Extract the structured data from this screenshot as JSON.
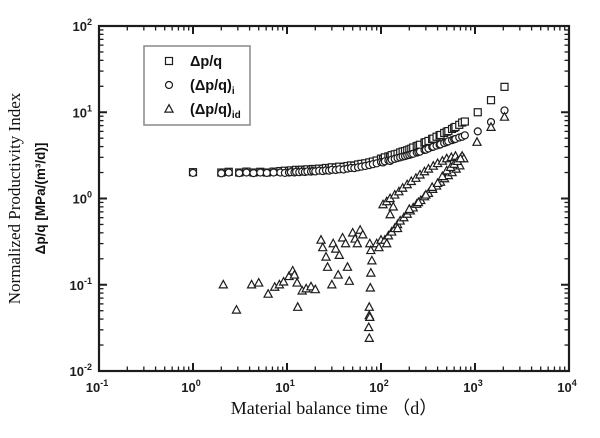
{
  "colors": {
    "background": "#ffffff",
    "frame": "#1c1c1c",
    "marker": "#1c1c1c",
    "marker_fill": "#ffffff",
    "legend_border": "#888888",
    "text": "#111111"
  },
  "chart_data": {
    "type": "scatter",
    "title": "",
    "xlabel": "Material balance time （d）",
    "ylabel_line1": "Normalized Productivity Index",
    "ylabel_line2": "Δp/q [MPa/(m³/d)]",
    "x_scale": "log",
    "y_scale": "log",
    "xlim": [
      0.1,
      10000
    ],
    "ylim": [
      0.01,
      100
    ],
    "x_tick_exponents": [
      -1,
      0,
      1,
      2,
      3,
      4
    ],
    "y_tick_exponents": [
      2,
      1,
      0,
      -1,
      -2
    ],
    "grid": false,
    "legend": {
      "position": "upper-left",
      "entries": [
        {
          "marker": "square",
          "label_main": "Δp/q",
          "label_sub": ""
        },
        {
          "marker": "circle",
          "label_main": "(Δp/q)",
          "label_sub": "i"
        },
        {
          "marker": "triangle",
          "label_main": "(Δp/q)",
          "label_sub": "id"
        }
      ]
    },
    "series": [
      {
        "name": "Δp/q",
        "marker": "square",
        "points": [
          [
            1,
            2.02
          ],
          [
            2,
            2.0
          ],
          [
            2.4,
            2.04
          ],
          [
            3.1,
            2.0
          ],
          [
            3.7,
            2.05
          ],
          [
            4.4,
            2.0
          ],
          [
            5.2,
            2.04
          ],
          [
            6.1,
            2.0
          ],
          [
            7.2,
            2.05
          ],
          [
            8.5,
            2.08
          ],
          [
            9.5,
            2.1
          ],
          [
            10.5,
            2.08
          ],
          [
            11,
            2.12
          ],
          [
            12,
            2.1
          ],
          [
            12.5,
            2.15
          ],
          [
            13.5,
            2.12
          ],
          [
            14.5,
            2.16
          ],
          [
            15.5,
            2.14
          ],
          [
            16.5,
            2.18
          ],
          [
            18,
            2.16
          ],
          [
            19,
            2.2
          ],
          [
            20,
            2.18
          ],
          [
            22,
            2.22
          ],
          [
            24,
            2.2
          ],
          [
            26,
            2.26
          ],
          [
            28,
            2.24
          ],
          [
            30,
            2.3
          ],
          [
            33,
            2.28
          ],
          [
            36,
            2.34
          ],
          [
            40,
            2.32
          ],
          [
            44,
            2.38
          ],
          [
            48,
            2.42
          ],
          [
            52,
            2.4
          ],
          [
            57,
            2.48
          ],
          [
            62,
            2.52
          ],
          [
            68,
            2.56
          ],
          [
            75,
            2.62
          ],
          [
            82,
            2.68
          ],
          [
            90,
            2.76
          ],
          [
            100,
            2.9
          ],
          [
            105,
            2.85
          ],
          [
            110,
            3.0
          ],
          [
            120,
            3.08
          ],
          [
            125,
            3.02
          ],
          [
            130,
            3.18
          ],
          [
            140,
            3.25
          ],
          [
            150,
            3.3
          ],
          [
            160,
            3.42
          ],
          [
            170,
            3.5
          ],
          [
            180,
            3.55
          ],
          [
            190,
            3.62
          ],
          [
            200,
            3.7
          ],
          [
            210,
            3.78
          ],
          [
            220,
            3.9
          ],
          [
            240,
            4.05
          ],
          [
            250,
            4.1
          ],
          [
            260,
            4.2
          ],
          [
            290,
            4.45
          ],
          [
            300,
            4.5
          ],
          [
            320,
            4.65
          ],
          [
            350,
            4.9
          ],
          [
            360,
            4.95
          ],
          [
            390,
            5.2
          ],
          [
            420,
            5.4
          ],
          [
            430,
            5.45
          ],
          [
            470,
            5.75
          ],
          [
            500,
            5.95
          ],
          [
            520,
            6.05
          ],
          [
            570,
            6.4
          ],
          [
            600,
            6.6
          ],
          [
            620,
            6.75
          ],
          [
            680,
            7.15
          ],
          [
            730,
            7.6
          ],
          [
            780,
            7.8
          ],
          [
            1070,
            10.0
          ],
          [
            1480,
            13.8
          ],
          [
            2060,
            19.7
          ]
        ]
      },
      {
        "name": "(Δp/q)i",
        "marker": "circle",
        "points": [
          [
            1,
            1.98
          ],
          [
            2,
            1.96
          ],
          [
            2.4,
            2.0
          ],
          [
            3.1,
            1.97
          ],
          [
            3.7,
            2.0
          ],
          [
            4.4,
            1.97
          ],
          [
            5.2,
            2.0
          ],
          [
            6.1,
            1.98
          ],
          [
            7.2,
            2.0
          ],
          [
            8.5,
            2.0
          ],
          [
            9.5,
            1.98
          ],
          [
            10.5,
            2.0
          ],
          [
            11,
            2.02
          ],
          [
            12,
            2.0
          ],
          [
            12.5,
            2.04
          ],
          [
            13.5,
            2.02
          ],
          [
            14.5,
            2.05
          ],
          [
            15.5,
            2.03
          ],
          [
            16.5,
            2.06
          ],
          [
            18,
            2.05
          ],
          [
            19,
            2.08
          ],
          [
            20,
            2.06
          ],
          [
            22,
            2.1
          ],
          [
            24,
            2.08
          ],
          [
            26,
            2.12
          ],
          [
            28,
            2.1
          ],
          [
            30,
            2.15
          ],
          [
            33,
            2.14
          ],
          [
            36,
            2.18
          ],
          [
            40,
            2.17
          ],
          [
            44,
            2.22
          ],
          [
            48,
            2.26
          ],
          [
            52,
            2.25
          ],
          [
            57,
            2.3
          ],
          [
            62,
            2.34
          ],
          [
            68,
            2.38
          ],
          [
            75,
            2.44
          ],
          [
            82,
            2.5
          ],
          [
            90,
            2.56
          ],
          [
            100,
            2.65
          ],
          [
            105,
            2.62
          ],
          [
            110,
            2.7
          ],
          [
            120,
            2.76
          ],
          [
            125,
            2.72
          ],
          [
            130,
            2.82
          ],
          [
            140,
            2.88
          ],
          [
            150,
            2.95
          ],
          [
            160,
            3.0
          ],
          [
            170,
            3.06
          ],
          [
            180,
            3.1
          ],
          [
            190,
            3.16
          ],
          [
            200,
            3.2
          ],
          [
            210,
            3.26
          ],
          [
            220,
            3.3
          ],
          [
            240,
            3.4
          ],
          [
            250,
            3.45
          ],
          [
            260,
            3.5
          ],
          [
            290,
            3.65
          ],
          [
            300,
            3.68
          ],
          [
            320,
            3.8
          ],
          [
            350,
            3.95
          ],
          [
            360,
            3.98
          ],
          [
            390,
            4.1
          ],
          [
            420,
            4.2
          ],
          [
            430,
            4.25
          ],
          [
            470,
            4.4
          ],
          [
            500,
            4.5
          ],
          [
            520,
            4.6
          ],
          [
            570,
            4.75
          ],
          [
            600,
            4.85
          ],
          [
            620,
            4.9
          ],
          [
            680,
            5.1
          ],
          [
            730,
            5.2
          ],
          [
            780,
            5.4
          ],
          [
            1070,
            6.0
          ],
          [
            1480,
            7.7
          ],
          [
            2060,
            10.5
          ]
        ]
      },
      {
        "name": "(Δp/q)id",
        "marker": "triangle",
        "points": [
          [
            2.1,
            0.1
          ],
          [
            2.9,
            0.051
          ],
          [
            4.2,
            0.1
          ],
          [
            5,
            0.105
          ],
          [
            6.3,
            0.078
          ],
          [
            7.4,
            0.094
          ],
          [
            8.3,
            0.1
          ],
          [
            9.2,
            0.108
          ],
          [
            10.5,
            0.125
          ],
          [
            11.5,
            0.145
          ],
          [
            12,
            0.13
          ],
          [
            12.8,
            0.105
          ],
          [
            13,
            0.055
          ],
          [
            14.5,
            0.085
          ],
          [
            16,
            0.09
          ],
          [
            18,
            0.095
          ],
          [
            20,
            0.088
          ],
          [
            23,
            0.33
          ],
          [
            24,
            0.27
          ],
          [
            26,
            0.21
          ],
          [
            27,
            0.16
          ],
          [
            30,
            0.1
          ],
          [
            31,
            0.3
          ],
          [
            33,
            0.26
          ],
          [
            35,
            0.13
          ],
          [
            36,
            0.22
          ],
          [
            39,
            0.35
          ],
          [
            42,
            0.3
          ],
          [
            44,
            0.16
          ],
          [
            46,
            0.11
          ],
          [
            50,
            0.4
          ],
          [
            53,
            0.34
          ],
          [
            56,
            0.3
          ],
          [
            60,
            0.43
          ],
          [
            64,
            0.38
          ],
          [
            76,
            0.3
          ],
          [
            78,
            0.25
          ],
          [
            80,
            0.19
          ],
          [
            78,
            0.137
          ],
          [
            77,
            0.092
          ],
          [
            75,
            0.055
          ],
          [
            75,
            0.044
          ],
          [
            76,
            0.042
          ],
          [
            74,
            0.032
          ],
          [
            75,
            0.024
          ],
          [
            90,
            0.3
          ],
          [
            95,
            0.27
          ],
          [
            100,
            0.33
          ],
          [
            110,
            0.33
          ],
          [
            115,
            0.3
          ],
          [
            120,
            0.37
          ],
          [
            130,
            0.41
          ],
          [
            140,
            0.45
          ],
          [
            150,
            0.5
          ],
          [
            160,
            0.55
          ],
          [
            175,
            0.6
          ],
          [
            190,
            0.66
          ],
          [
            205,
            0.72
          ],
          [
            220,
            0.78
          ],
          [
            240,
            0.86
          ],
          [
            265,
            0.95
          ],
          [
            290,
            1.05
          ],
          [
            320,
            1.15
          ],
          [
            355,
            1.28
          ],
          [
            390,
            1.4
          ],
          [
            430,
            1.55
          ],
          [
            475,
            1.7
          ],
          [
            520,
            1.85
          ],
          [
            570,
            2.0
          ],
          [
            630,
            2.2
          ],
          [
            690,
            2.4
          ],
          [
            105,
            0.85
          ],
          [
            115,
            0.92
          ],
          [
            125,
            1.0
          ],
          [
            140,
            1.1
          ],
          [
            155,
            1.2
          ],
          [
            170,
            1.32
          ],
          [
            190,
            1.45
          ],
          [
            210,
            1.58
          ],
          [
            235,
            1.72
          ],
          [
            260,
            1.88
          ],
          [
            290,
            2.05
          ],
          [
            320,
            2.2
          ],
          [
            360,
            2.38
          ],
          [
            400,
            2.55
          ],
          [
            450,
            2.72
          ],
          [
            500,
            2.9
          ],
          [
            560,
            3.0
          ],
          [
            620,
            3.1
          ],
          [
            730,
            3.1
          ],
          [
            760,
            2.9
          ],
          [
            150,
            0.45
          ],
          [
            200,
            0.75
          ],
          [
            250,
            0.9
          ],
          [
            300,
            1.1
          ],
          [
            350,
            1.35
          ],
          [
            400,
            1.5
          ],
          [
            450,
            1.8
          ],
          [
            500,
            2.1
          ],
          [
            550,
            2.3
          ],
          [
            600,
            2.5
          ],
          [
            650,
            2.7
          ],
          [
            700,
            2.9
          ],
          [
            125,
            0.65
          ],
          [
            135,
            0.8
          ],
          [
            1050,
            4.5
          ],
          [
            1480,
            6.7
          ],
          [
            2060,
            8.8
          ]
        ]
      }
    ]
  }
}
